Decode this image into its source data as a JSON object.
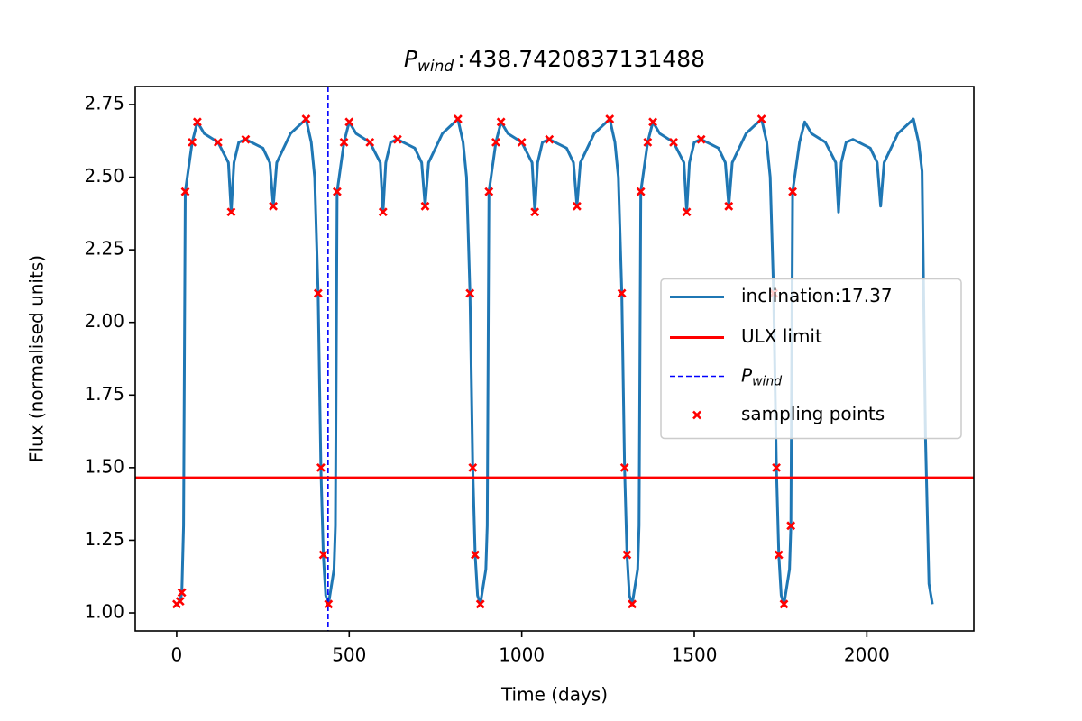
{
  "chart_data": {
    "type": "line",
    "title": {
      "symbol": "P",
      "subscript": "wind",
      "separator": ":"
    },
    "xlabel": "Time (days)",
    "ylabel": "Flux (normalised units)",
    "xlim": [
      -120,
      2310
    ],
    "ylim": [
      0.938,
      2.812
    ],
    "xticks": [
      0,
      500,
      1000,
      1500,
      2000
    ],
    "yticks": [
      {
        "value": 1,
        "label": "1.00"
      },
      {
        "value": 1.25,
        "label": "1.25"
      },
      {
        "value": 1.5,
        "label": "1.50"
      },
      {
        "value": 1.75,
        "label": "1.75"
      },
      {
        "value": 2,
        "label": "2.00"
      },
      {
        "value": 2.25,
        "label": "2.25"
      },
      {
        "value": 2.5,
        "label": "2.50"
      },
      {
        "value": 2.75,
        "label": "2.75"
      }
    ],
    "series": [
      {
        "name": "inclination:17.37",
        "color": "#1f77b4",
        "x": [
          0,
          10,
          15,
          20,
          25,
          45,
          60,
          80,
          120,
          150,
          158,
          166,
          180,
          200,
          250,
          270,
          280,
          290,
          330,
          375,
          390,
          400,
          410,
          418,
          425,
          432,
          440,
          456,
          460,
          465,
          485,
          500,
          520,
          560,
          590,
          598,
          606,
          620,
          640,
          690,
          710,
          720,
          730,
          770,
          815,
          830,
          840,
          850,
          858,
          865,
          872,
          880,
          896,
          900,
          905,
          925,
          940,
          960,
          1000,
          1030,
          1038,
          1046,
          1060,
          1080,
          1130,
          1150,
          1160,
          1170,
          1210,
          1255,
          1270,
          1280,
          1290,
          1298,
          1305,
          1312,
          1320,
          1336,
          1340,
          1345,
          1365,
          1380,
          1400,
          1440,
          1470,
          1478,
          1486,
          1500,
          1520,
          1570,
          1590,
          1600,
          1610,
          1650,
          1695,
          1710,
          1720,
          1730,
          1738,
          1745,
          1752,
          1760,
          1776,
          1780,
          1785,
          1805,
          1820,
          1840,
          1880,
          1910,
          1918,
          1926,
          1940,
          1960,
          2010,
          2030,
          2040,
          2050,
          2090,
          2135,
          2150,
          2160,
          2170,
          2180,
          2190
        ],
        "values": [
          1.03,
          1.04,
          1.07,
          1.3,
          2.45,
          2.62,
          2.69,
          2.65,
          2.62,
          2.55,
          2.38,
          2.55,
          2.62,
          2.63,
          2.6,
          2.55,
          2.4,
          2.55,
          2.65,
          2.7,
          2.62,
          2.5,
          2.1,
          1.5,
          1.2,
          1.06,
          1.03,
          1.15,
          1.3,
          2.45,
          2.62,
          2.69,
          2.65,
          2.62,
          2.55,
          2.38,
          2.55,
          2.62,
          2.63,
          2.6,
          2.55,
          2.4,
          2.55,
          2.65,
          2.7,
          2.62,
          2.5,
          2.1,
          1.5,
          1.2,
          1.06,
          1.03,
          1.15,
          1.3,
          2.45,
          2.62,
          2.69,
          2.65,
          2.62,
          2.55,
          2.38,
          2.55,
          2.62,
          2.63,
          2.6,
          2.55,
          2.4,
          2.55,
          2.65,
          2.7,
          2.62,
          2.5,
          2.1,
          1.5,
          1.2,
          1.06,
          1.03,
          1.15,
          1.3,
          2.45,
          2.62,
          2.69,
          2.65,
          2.62,
          2.55,
          2.38,
          2.55,
          2.62,
          2.63,
          2.6,
          2.55,
          2.4,
          2.55,
          2.65,
          2.7,
          2.62,
          2.5,
          2.1,
          1.5,
          1.2,
          1.06,
          1.03,
          1.15,
          1.3,
          2.45,
          2.62,
          2.69,
          2.65,
          2.62,
          2.55,
          2.38,
          2.55,
          2.62,
          2.63,
          2.6,
          2.55,
          2.4,
          2.55,
          2.65,
          2.7,
          2.62,
          2.52,
          1.6,
          1.1,
          1.03
        ]
      }
    ],
    "hline": {
      "name": "ULX limit",
      "color": "red",
      "value": 1.465
    },
    "vline": {
      "name": {
        "symbol": "P",
        "subscript": "wind"
      },
      "color": "blue",
      "dashed": true,
      "value": 438.7420837131488
    },
    "scatter": {
      "name": "sampling points",
      "color": "red",
      "marker": "x",
      "x": [
        0,
        10,
        15,
        25,
        45,
        60,
        120,
        158,
        200,
        280,
        375,
        410,
        418,
        425,
        440,
        465,
        485,
        500,
        560,
        598,
        640,
        720,
        815,
        850,
        858,
        865,
        880,
        905,
        925,
        940,
        1000,
        1038,
        1080,
        1160,
        1255,
        1290,
        1298,
        1305,
        1320,
        1345,
        1365,
        1380,
        1440,
        1478,
        1520,
        1600,
        1695,
        1730,
        1738,
        1745,
        1760,
        1780,
        1785
      ],
      "values": [
        1.03,
        1.04,
        1.07,
        2.45,
        2.62,
        2.69,
        2.62,
        2.38,
        2.63,
        2.4,
        2.7,
        2.1,
        1.5,
        1.2,
        1.03,
        2.45,
        2.62,
        2.69,
        2.62,
        2.38,
        2.63,
        2.4,
        2.7,
        2.1,
        1.5,
        1.2,
        1.03,
        2.45,
        2.62,
        2.69,
        2.62,
        2.38,
        2.63,
        2.4,
        2.7,
        2.1,
        1.5,
        1.2,
        1.03,
        2.45,
        2.62,
        2.69,
        2.62,
        2.38,
        2.63,
        2.4,
        2.7,
        2.1,
        1.5,
        1.2,
        1.03,
        1.3,
        2.45
      ]
    },
    "legend": "center right"
  }
}
